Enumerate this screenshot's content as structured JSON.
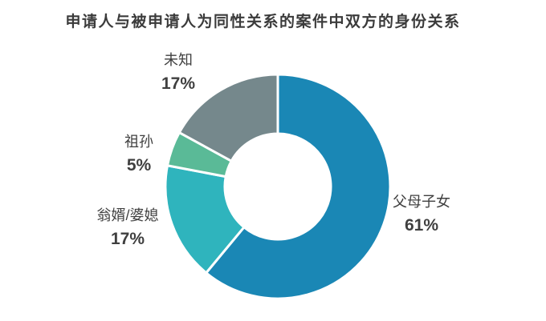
{
  "title": "申请人与被申请人为同性关系的案件中双方的身份关系",
  "chart_data": {
    "type": "pie",
    "subtype": "donut",
    "title": "申请人与被申请人为同性关系的案件中双方的身份关系",
    "unit": "%",
    "direction": "clockwise",
    "start_angle": "12-oclock",
    "inner_radius_ratio": 0.47,
    "legend_position": "none",
    "slice_border_color": "#ffffff",
    "label_text_color": "#3f3f3f",
    "title_color": "#3b3b3b",
    "background_color": "#ffffff",
    "segments": [
      {
        "label": "父母子女",
        "value": 61,
        "pct": "61%",
        "color": "#1a87b5"
      },
      {
        "label": "翁婿/婆媳",
        "value": 17,
        "pct": "17%",
        "color": "#2fb4bd"
      },
      {
        "label": "祖孙",
        "value": 5,
        "pct": "5%",
        "color": "#5aba97"
      },
      {
        "label": "未知",
        "value": 17,
        "pct": "17%",
        "color": "#75888c"
      }
    ]
  }
}
